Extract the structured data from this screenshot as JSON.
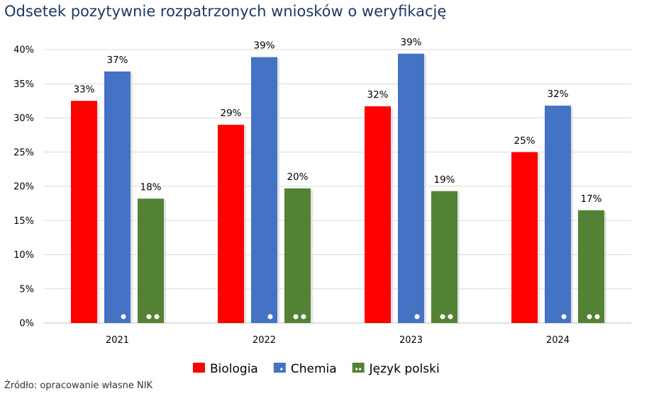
{
  "chart_data": {
    "type": "bar",
    "title": "Odsetek pozytywnie rozpatrzonych wniosków o weryfikację",
    "categories": [
      "2021",
      "2022",
      "2023",
      "2024"
    ],
    "ylim": [
      0,
      40
    ],
    "yticks": [
      "0%",
      "5%",
      "10%",
      "15%",
      "20%",
      "25%",
      "30%",
      "35%",
      "40%"
    ],
    "grid": true,
    "legend_position": "bottom",
    "series": [
      {
        "name": "Biologia",
        "color": "#ff0000",
        "pattern": "none",
        "values": [
          32.5,
          29.0,
          31.7,
          25.0
        ],
        "labels": [
          "33%",
          "29%",
          "32%",
          "25%"
        ]
      },
      {
        "name": "Chemia",
        "color": "#4472c4",
        "pattern": "one-dot",
        "values": [
          36.8,
          38.9,
          39.4,
          31.8
        ],
        "labels": [
          "37%",
          "39%",
          "39%",
          "32%"
        ]
      },
      {
        "name": "Język polski",
        "color": "#548235",
        "pattern": "two-dots",
        "values": [
          18.2,
          19.7,
          19.3,
          16.5
        ],
        "labels": [
          "18%",
          "20%",
          "19%",
          "17%"
        ]
      }
    ]
  },
  "source": "Źródło: opracowanie własne NIK"
}
